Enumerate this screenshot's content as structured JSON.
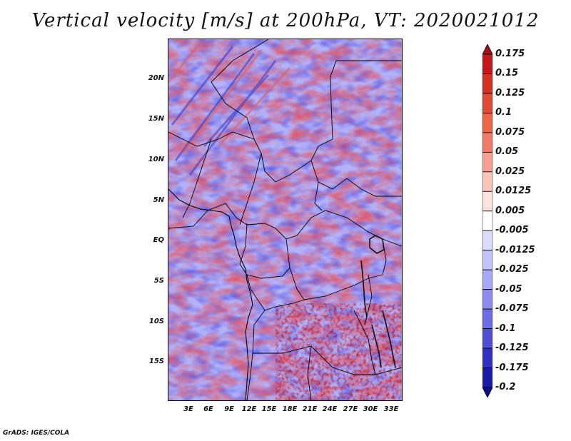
{
  "title": "Vertical velocity [m/s] at 200hPa, VT: 2020021012",
  "credit": "GrADS: IGES/COLA",
  "lat_labels": [
    "20N",
    "15N",
    "10N",
    "5N",
    "EQ",
    "5S",
    "10S",
    "15S"
  ],
  "lon_labels": [
    "3E",
    "6E",
    "9E",
    "12E",
    "15E",
    "18E",
    "21E",
    "24E",
    "27E",
    "30E",
    "33E"
  ],
  "colorbar": {
    "labels": [
      "0.175",
      "0.15",
      "0.125",
      "0.1",
      "0.075",
      "0.05",
      "0.025",
      "0.0125",
      "0.005",
      "-0.005",
      "-0.0125",
      "-0.025",
      "-0.05",
      "-0.075",
      "-0.1",
      "-0.125",
      "-0.175",
      "-0.2"
    ],
    "colors": [
      "#a50f15",
      "#c4161c",
      "#d7301f",
      "#e34a33",
      "#ef6548",
      "#f47a6a",
      "#f8a093",
      "#fbc4b9",
      "#fde3dd",
      "#ffffff",
      "#dcdcff",
      "#c3c3ff",
      "#a8a8f8",
      "#8c8cf0",
      "#6d6de6",
      "#4e4ed8",
      "#3030c4",
      "#1a1aa8",
      "#0d0d8a"
    ]
  },
  "legend_placement": "right"
}
